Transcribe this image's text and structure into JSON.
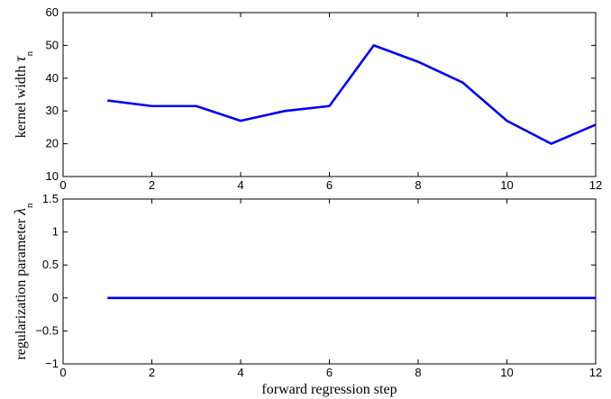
{
  "chart_data": [
    {
      "type": "line",
      "xlabel": "",
      "ylabel": "kernel width",
      "ylabel_symbol": "τ",
      "ylabel_subscript": "n",
      "xlim": [
        0,
        12
      ],
      "ylim": [
        10,
        60
      ],
      "xticks": [
        "0",
        "2",
        "4",
        "6",
        "8",
        "10",
        "12"
      ],
      "yticks": [
        "10",
        "20",
        "30",
        "40",
        "50",
        "60"
      ],
      "grid": false,
      "x": [
        1,
        2,
        3,
        4,
        5,
        6,
        7,
        8,
        9,
        10,
        11,
        12
      ],
      "series": [
        {
          "values": [
            33.2,
            31.5,
            31.5,
            27,
            30,
            31.5,
            50,
            45,
            38.7,
            27,
            20,
            25.8
          ],
          "color": "#0000ee"
        }
      ]
    },
    {
      "type": "line",
      "xlabel": "forward regression step",
      "ylabel": "regularization parameter",
      "ylabel_symbol": "λ",
      "ylabel_subscript": "n",
      "xlim": [
        0,
        12
      ],
      "ylim": [
        -1,
        1.5
      ],
      "xticks": [
        "0",
        "2",
        "4",
        "6",
        "8",
        "10",
        "12"
      ],
      "yticks": [
        "−1",
        "−0.5",
        "0",
        "0.5",
        "1",
        "1.5"
      ],
      "grid": false,
      "x": [
        1,
        2,
        3,
        4,
        5,
        6,
        7,
        8,
        9,
        10,
        11,
        12
      ],
      "series": [
        {
          "values": [
            0,
            0,
            0,
            0,
            0,
            0,
            0,
            0,
            0,
            0,
            0,
            0
          ],
          "color": "#0000ee"
        }
      ]
    }
  ]
}
